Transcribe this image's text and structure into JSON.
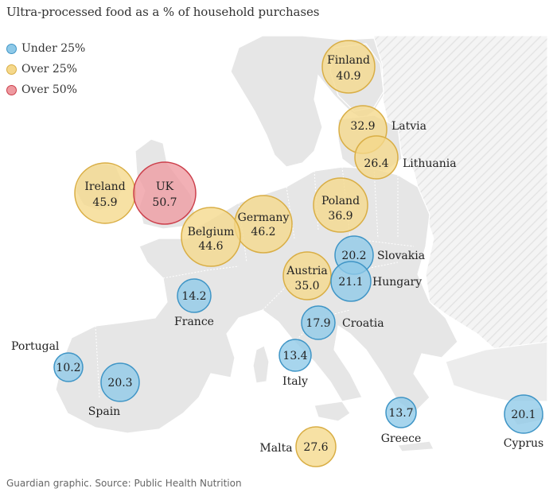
{
  "title": "Ultra-processed food as a % of household purchases",
  "legend": [
    {
      "label": "Under 25%",
      "category": "under25"
    },
    {
      "label": "Over 25%",
      "category": "over25"
    },
    {
      "label": "Over 50%",
      "category": "over50"
    }
  ],
  "colors": {
    "under25": {
      "fill": "#8ec9e8",
      "stroke": "#3f95c6"
    },
    "over25": {
      "fill": "#f5d88b",
      "stroke": "#d9ae45"
    },
    "over50": {
      "fill": "#ee9aa0",
      "stroke": "#cc3f4b"
    }
  },
  "countries": [
    {
      "name": "Finland",
      "value": "40.9",
      "category": "over25"
    },
    {
      "name": "Latvia",
      "value": "32.9",
      "category": "over25"
    },
    {
      "name": "Lithuania",
      "value": "26.4",
      "category": "over25"
    },
    {
      "name": "Ireland",
      "value": "45.9",
      "category": "over25"
    },
    {
      "name": "UK",
      "value": "50.7",
      "category": "over50"
    },
    {
      "name": "Germany",
      "value": "46.2",
      "category": "over25"
    },
    {
      "name": "Belgium",
      "value": "44.6",
      "category": "over25"
    },
    {
      "name": "Poland",
      "value": "36.9",
      "category": "over25"
    },
    {
      "name": "Slovakia",
      "value": "20.2",
      "category": "under25"
    },
    {
      "name": "Austria",
      "value": "35.0",
      "category": "over25"
    },
    {
      "name": "Hungary",
      "value": "21.1",
      "category": "under25"
    },
    {
      "name": "France",
      "value": "14.2",
      "category": "under25"
    },
    {
      "name": "Croatia",
      "value": "17.9",
      "category": "under25"
    },
    {
      "name": "Portugal",
      "value": "10.2",
      "category": "under25"
    },
    {
      "name": "Spain",
      "value": "20.3",
      "category": "under25"
    },
    {
      "name": "Italy",
      "value": "13.4",
      "category": "under25"
    },
    {
      "name": "Greece",
      "value": "13.7",
      "category": "under25"
    },
    {
      "name": "Cyprus",
      "value": "20.1",
      "category": "under25"
    },
    {
      "name": "Malta",
      "value": "27.6",
      "category": "over25"
    }
  ],
  "source": "Guardian graphic. Source: Public Health Nutrition"
}
